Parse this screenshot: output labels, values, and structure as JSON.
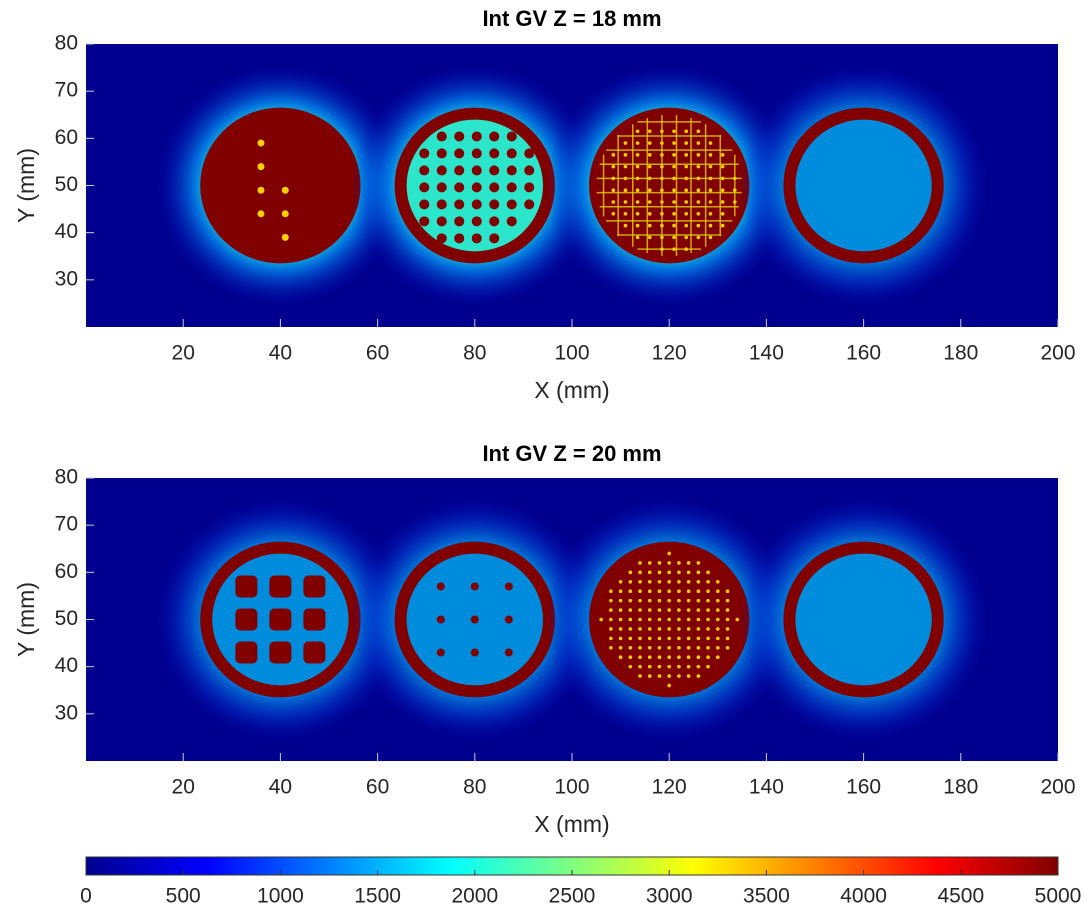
{
  "chart_data": [
    {
      "type": "heatmap",
      "title": "Int GV  Z =  18 mm",
      "xlabel": "X (mm)",
      "ylabel": "Y (mm)",
      "xlim": [
        0,
        200
      ],
      "xticks": [
        20,
        40,
        60,
        80,
        100,
        120,
        140,
        160,
        180,
        200
      ],
      "ylim": [
        20,
        80
      ],
      "yticks": [
        30,
        40,
        50,
        60,
        70,
        80
      ]
    },
    {
      "type": "heatmap",
      "title": "Int GV  Z =  20 mm",
      "xlabel": "X (mm)",
      "ylabel": "Y (mm)",
      "xlim": [
        0,
        200
      ],
      "xticks": [
        20,
        40,
        60,
        80,
        100,
        120,
        140,
        160,
        180,
        200
      ],
      "ylim": [
        20,
        80
      ],
      "yticks": [
        30,
        40,
        50,
        60,
        70,
        80
      ]
    }
  ],
  "colorbar": {
    "clim": [
      0,
      5000
    ],
    "ticks": [
      0,
      500,
      1000,
      1500,
      2000,
      2500,
      3000,
      3500,
      4000,
      4500,
      5000
    ]
  }
}
